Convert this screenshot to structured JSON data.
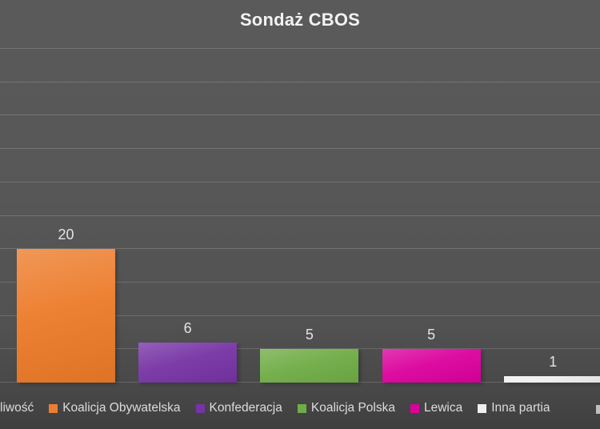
{
  "title": "Sondaż CBOS",
  "colors": {
    "background_top": "#5A5A5A",
    "background_bottom": "#3F3F3F",
    "gridline": "rgba(255,255,255,0.16)",
    "title_text": "#F2F2F2",
    "value_label_text": "#E3E3E3",
    "legend_text": "#DCDCDC"
  },
  "chart_data": {
    "type": "bar",
    "title": "Sondaż CBOS",
    "categories": [
      "Koalicja Obywatelska",
      "Konfederacja",
      "Koalicja Polska",
      "Lewica",
      "Inna partia"
    ],
    "values": [
      20,
      6,
      5,
      5,
      1
    ],
    "value_labels": [
      "20",
      "6",
      "5",
      "5",
      "1"
    ],
    "bar_colors": [
      "#EC7A28",
      "#7633A4",
      "#6FAC45",
      "#DB009C",
      "#EFEFEF"
    ],
    "xlabel": "",
    "ylabel": "",
    "ylim": [
      0,
      50
    ],
    "gridline_step": 5,
    "grid": true,
    "legend_position": "bottom",
    "y_axis_tick_labels_visible": false,
    "x_axis_category_labels_visible": false,
    "cropped_left": true,
    "cropped_right": true
  },
  "legend": {
    "truncated_left_label": "liwość",
    "items": [
      {
        "label": "Koalicja Obywatelska",
        "color": "#ED7D31"
      },
      {
        "label": "Konfederacja",
        "color": "#7633A4"
      },
      {
        "label": "Koalicja Polska",
        "color": "#70AD47"
      },
      {
        "label": "Lewica",
        "color": "#DB009C"
      },
      {
        "label": "Inna partia",
        "color": "#EFEFEF"
      }
    ],
    "partial_right_swatch_color": "#BFBFBF"
  }
}
